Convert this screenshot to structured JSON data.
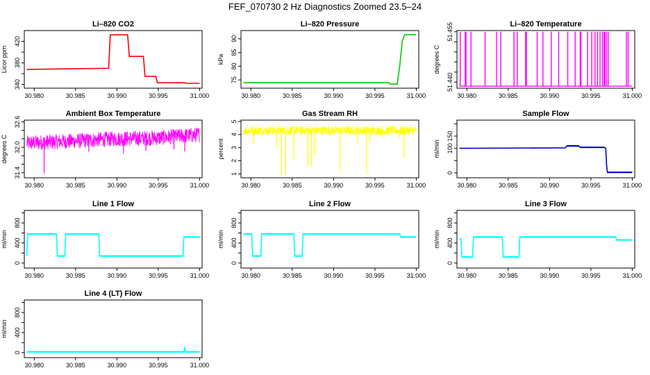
{
  "figure": {
    "title": "FEF_070730  2 Hz Diagnostics Zoomed 23.5–24"
  },
  "chart_data": [
    {
      "type": "line",
      "title": "Li–820 CO2",
      "ylabel": "Licor ppm",
      "color": "#ff0000",
      "xlim": [
        30.9788,
        31.0003
      ],
      "ylim": [
        333,
        440
      ],
      "xticks": [
        30.98,
        30.985,
        30.99,
        30.995,
        31.0
      ],
      "xtick_labels": [
        "30.980",
        "30.985",
        "30.990",
        "30.995",
        "31.000"
      ],
      "yticks": [
        340,
        360,
        380,
        400,
        420
      ],
      "ytick_labels": [
        "340",
        "",
        "380",
        "",
        "420"
      ],
      "x": [
        30.9791,
        30.989,
        30.9892,
        30.9913,
        30.9915,
        30.9932,
        30.9934,
        30.9947,
        30.9949,
        30.9982,
        30.9984,
        31.0
      ],
      "y": [
        368,
        370,
        432,
        432,
        392,
        392,
        355,
        355,
        343,
        343,
        342,
        342
      ]
    },
    {
      "type": "line",
      "title": "Li–820 Pressure",
      "ylabel": "kPa",
      "color": "#00cc00",
      "xlim": [
        30.9788,
        31.0003
      ],
      "ylim": [
        72,
        93
      ],
      "xticks": [
        30.98,
        30.985,
        30.99,
        30.995,
        31.0
      ],
      "xtick_labels": [
        "30.980",
        "30.985",
        "30.990",
        "30.995",
        "31.000"
      ],
      "yticks": [
        75,
        80,
        85,
        90
      ],
      "ytick_labels": [
        "75",
        "80",
        "85",
        "90"
      ],
      "x": [
        30.9791,
        30.9967,
        30.9968,
        30.9977,
        30.998,
        30.9983,
        30.9986,
        31.0
      ],
      "y": [
        74,
        74,
        73.5,
        73.5,
        80,
        89,
        91.5,
        91.5
      ]
    },
    {
      "type": "spikes",
      "title": "Li–820 Temperature",
      "ylabel": "degrees C",
      "color": "#ff00ff",
      "xlim": [
        30.9788,
        31.0003
      ],
      "ylim": [
        51.437,
        51.4656
      ],
      "xticks": [
        30.98,
        30.985,
        30.99,
        30.995,
        31.0
      ],
      "xtick_labels": [
        "30.980",
        "30.985",
        "30.990",
        "30.995",
        "31.000"
      ],
      "yticks": [
        51.44,
        51.445,
        51.45,
        51.455,
        51.46,
        51.465
      ],
      "ytick_labels": [
        "51.440",
        "",
        "",
        "",
        "",
        "51.455"
      ],
      "baseline": 51.438,
      "spike_top": 51.465,
      "spikes": [
        30.9792,
        30.9798,
        30.9799,
        30.9805,
        30.9822,
        30.9836,
        30.9841,
        30.9857,
        30.9861,
        30.9871,
        30.9872,
        30.9885,
        30.9892,
        30.9902,
        30.9911,
        30.9922,
        30.9931,
        30.9937,
        30.9938,
        30.9946,
        30.9951,
        30.9955,
        30.9958,
        30.9961,
        30.9964,
        30.9966,
        30.9967,
        30.9969,
        30.9971,
        30.9993,
        30.9995
      ]
    },
    {
      "type": "noisy",
      "title": "Ambient Box Temperature",
      "ylabel": "degrees C",
      "color": "#ff00ff",
      "xlim": [
        30.9788,
        31.0003
      ],
      "ylim": [
        31.28,
        32.64
      ],
      "xticks": [
        30.98,
        30.985,
        30.99,
        30.995,
        31.0
      ],
      "xtick_labels": [
        "30.980",
        "30.985",
        "30.990",
        "30.995",
        "31.000"
      ],
      "yticks": [
        31.4,
        31.6,
        31.8,
        32.0,
        32.2,
        32.4,
        32.6
      ],
      "ytick_labels": [
        "31.4",
        "",
        "",
        "32.0",
        "",
        "",
        "32.6"
      ],
      "x_start": 30.9791,
      "x_end": 31.0,
      "center": [
        [
          30.9791,
          32.1
        ],
        [
          30.985,
          32.15
        ],
        [
          30.99,
          32.2
        ],
        [
          30.995,
          32.22
        ],
        [
          31.0,
          32.3
        ]
      ],
      "amplitude": 0.18,
      "dips": [
        [
          30.9812,
          31.38
        ],
        [
          30.9866,
          31.9
        ],
        [
          30.9908,
          31.85
        ],
        [
          30.9935,
          31.92
        ],
        [
          30.9969,
          31.95
        ],
        [
          30.9982,
          31.9
        ]
      ]
    },
    {
      "type": "noisy",
      "title": "Gas Stream RH",
      "ylabel": "percent",
      "color": "#ffff00",
      "xlim": [
        30.9788,
        31.0003
      ],
      "ylim": [
        0.7,
        5.1
      ],
      "xticks": [
        30.98,
        30.985,
        30.99,
        30.995,
        31.0
      ],
      "xtick_labels": [
        "30.980",
        "30.985",
        "30.990",
        "30.995",
        "31.000"
      ],
      "yticks": [
        1,
        2,
        3,
        4,
        5
      ],
      "ytick_labels": [
        "1",
        "2",
        "3",
        "4",
        "5"
      ],
      "x_start": 30.9791,
      "x_end": 31.0,
      "center": [
        [
          30.9791,
          4.3
        ],
        [
          30.99,
          4.3
        ],
        [
          31.0,
          4.3
        ]
      ],
      "amplitude": 0.35,
      "dips": [
        [
          30.9803,
          3.3
        ],
        [
          30.9831,
          3.0
        ],
        [
          30.9837,
          0.9
        ],
        [
          30.9842,
          0.95
        ],
        [
          30.9852,
          2.1
        ],
        [
          30.9869,
          1.6
        ],
        [
          30.9873,
          1.6
        ],
        [
          30.9877,
          2.3
        ],
        [
          30.9908,
          1.2
        ],
        [
          30.9929,
          3.3
        ],
        [
          30.994,
          1.0
        ],
        [
          30.9944,
          3.4
        ],
        [
          30.9959,
          3.8
        ],
        [
          30.998,
          3.7
        ],
        [
          30.9985,
          2.2
        ]
      ]
    },
    {
      "type": "line",
      "title": "Sample Flow",
      "ylabel": "ml/min",
      "color": "#0000cc",
      "xlim": [
        30.9788,
        31.0003
      ],
      "ylim": [
        -20,
        215
      ],
      "xticks": [
        30.98,
        30.985,
        30.99,
        30.995,
        31.0
      ],
      "xtick_labels": [
        "30.980",
        "30.985",
        "30.990",
        "30.995",
        "31.000"
      ],
      "yticks": [
        0,
        50,
        100,
        150,
        200
      ],
      "ytick_labels": [
        "0",
        "",
        "100",
        "150",
        ""
      ],
      "x": [
        30.9791,
        30.9919,
        30.9921,
        30.9935,
        30.9937,
        30.9966,
        30.9968,
        30.9969,
        30.997,
        31.0
      ],
      "y": [
        100,
        102,
        110,
        110,
        104,
        104,
        100,
        30,
        2,
        2
      ]
    },
    {
      "type": "line",
      "title": "Line 1 Flow",
      "ylabel": "ml/min",
      "color": "#00ffff",
      "xlim": [
        30.9788,
        31.0003
      ],
      "ylim": [
        -100,
        1050
      ],
      "xticks": [
        30.98,
        30.985,
        30.99,
        30.995,
        31.0
      ],
      "xtick_labels": [
        "30.980",
        "30.985",
        "30.990",
        "30.995",
        "31.000"
      ],
      "yticks": [
        0,
        200,
        400,
        600,
        800,
        1000
      ],
      "ytick_labels": [
        "0",
        "",
        "400",
        "",
        "800",
        ""
      ],
      "x": [
        30.9791,
        30.9792,
        30.9827,
        30.9828,
        30.9837,
        30.9838,
        30.9878,
        30.9879,
        30.998,
        30.9981,
        31.0
      ],
      "y": [
        140,
        580,
        580,
        140,
        140,
        580,
        580,
        140,
        140,
        520,
        520
      ]
    },
    {
      "type": "line",
      "title": "Line 2 Flow",
      "ylabel": "ml/min",
      "color": "#00ffff",
      "xlim": [
        30.9788,
        31.0003
      ],
      "ylim": [
        -100,
        1050
      ],
      "xticks": [
        30.98,
        30.985,
        30.99,
        30.995,
        31.0
      ],
      "xtick_labels": [
        "30.980",
        "30.985",
        "30.990",
        "30.995",
        "31.000"
      ],
      "yticks": [
        0,
        200,
        400,
        600,
        800,
        1000
      ],
      "ytick_labels": [
        "0",
        "",
        "400",
        "",
        "800",
        ""
      ],
      "x": [
        30.9791,
        30.9801,
        30.9802,
        30.9812,
        30.9813,
        30.9852,
        30.9853,
        30.9862,
        30.9863,
        30.998,
        30.9981,
        31.0
      ],
      "y": [
        580,
        580,
        140,
        140,
        580,
        580,
        140,
        140,
        580,
        580,
        520,
        520
      ]
    },
    {
      "type": "line",
      "title": "Line 3 Flow",
      "ylabel": "ml/min",
      "color": "#00ffff",
      "xlim": [
        30.9788,
        31.0003
      ],
      "ylim": [
        -100,
        1050
      ],
      "xticks": [
        30.98,
        30.985,
        30.99,
        30.995,
        31.0
      ],
      "xtick_labels": [
        "30.980",
        "30.985",
        "30.990",
        "30.995",
        "31.000"
      ],
      "yticks": [
        0,
        200,
        400,
        600,
        800,
        1000
      ],
      "ytick_labels": [
        "0",
        "",
        "400",
        "",
        "800",
        ""
      ],
      "x": [
        30.9791,
        30.9793,
        30.9794,
        30.9807,
        30.9808,
        30.9843,
        30.9844,
        30.9863,
        30.9864,
        30.998,
        30.9981,
        31.0
      ],
      "y": [
        480,
        480,
        120,
        120,
        520,
        520,
        120,
        120,
        520,
        520,
        460,
        460
      ]
    },
    {
      "type": "line",
      "title": "Line 4 (LT) Flow",
      "ylabel": "ml/min",
      "color": "#00ffff",
      "xlim": [
        30.9788,
        31.0003
      ],
      "ylim": [
        -100,
        1050
      ],
      "xticks": [
        30.98,
        30.985,
        30.99,
        30.995,
        31.0
      ],
      "xtick_labels": [
        "30.980",
        "30.985",
        "30.990",
        "30.995",
        "31.000"
      ],
      "yticks": [
        0,
        200,
        400,
        600,
        800,
        1000
      ],
      "ytick_labels": [
        "0",
        "",
        "400",
        "",
        "800",
        ""
      ],
      "x": [
        30.9791,
        30.9981,
        30.9982,
        30.9983,
        31.0
      ],
      "y": [
        15,
        15,
        110,
        15,
        15
      ]
    }
  ]
}
